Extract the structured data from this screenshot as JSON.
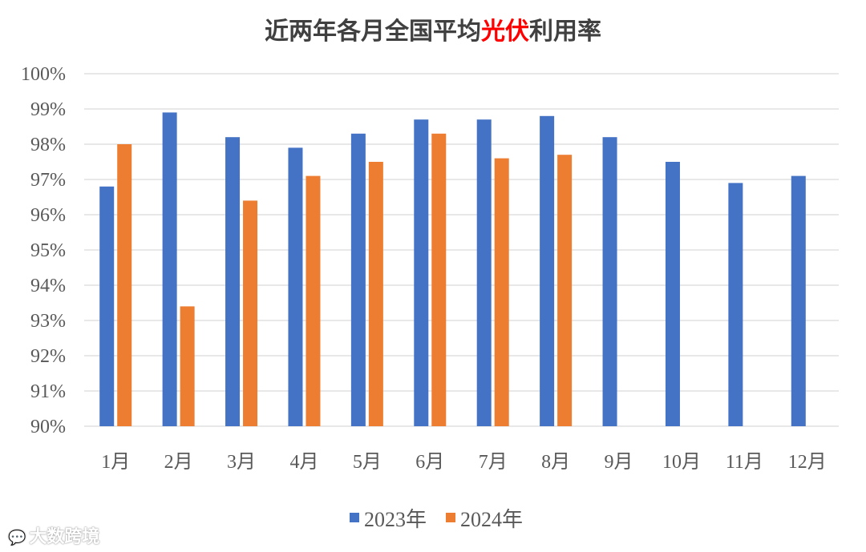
{
  "title": {
    "part1": "近两年各月全国平均",
    "highlight": "光伏",
    "part2": "利用率"
  },
  "chart_data": {
    "type": "bar",
    "categories": [
      "1月",
      "2月",
      "3月",
      "4月",
      "5月",
      "6月",
      "7月",
      "8月",
      "9月",
      "10月",
      "11月",
      "12月"
    ],
    "series": [
      {
        "name": "2023年",
        "color": "#4472c4",
        "values": [
          96.8,
          98.9,
          98.2,
          97.9,
          98.3,
          98.7,
          98.7,
          98.8,
          98.2,
          97.5,
          96.9,
          97.1
        ]
      },
      {
        "name": "2024年",
        "color": "#ed7d31",
        "values": [
          98.0,
          93.4,
          96.4,
          97.1,
          97.5,
          98.3,
          97.6,
          97.7,
          null,
          null,
          null,
          null
        ]
      }
    ],
    "ylim": [
      90,
      100
    ],
    "yticks": [
      "90%",
      "91%",
      "92%",
      "93%",
      "94%",
      "95%",
      "96%",
      "97%",
      "98%",
      "99%",
      "100%"
    ],
    "grid": true,
    "legend_position": "bottom"
  },
  "watermark": {
    "text": "大数跨境",
    "icon": "chat-bubble-icon"
  }
}
